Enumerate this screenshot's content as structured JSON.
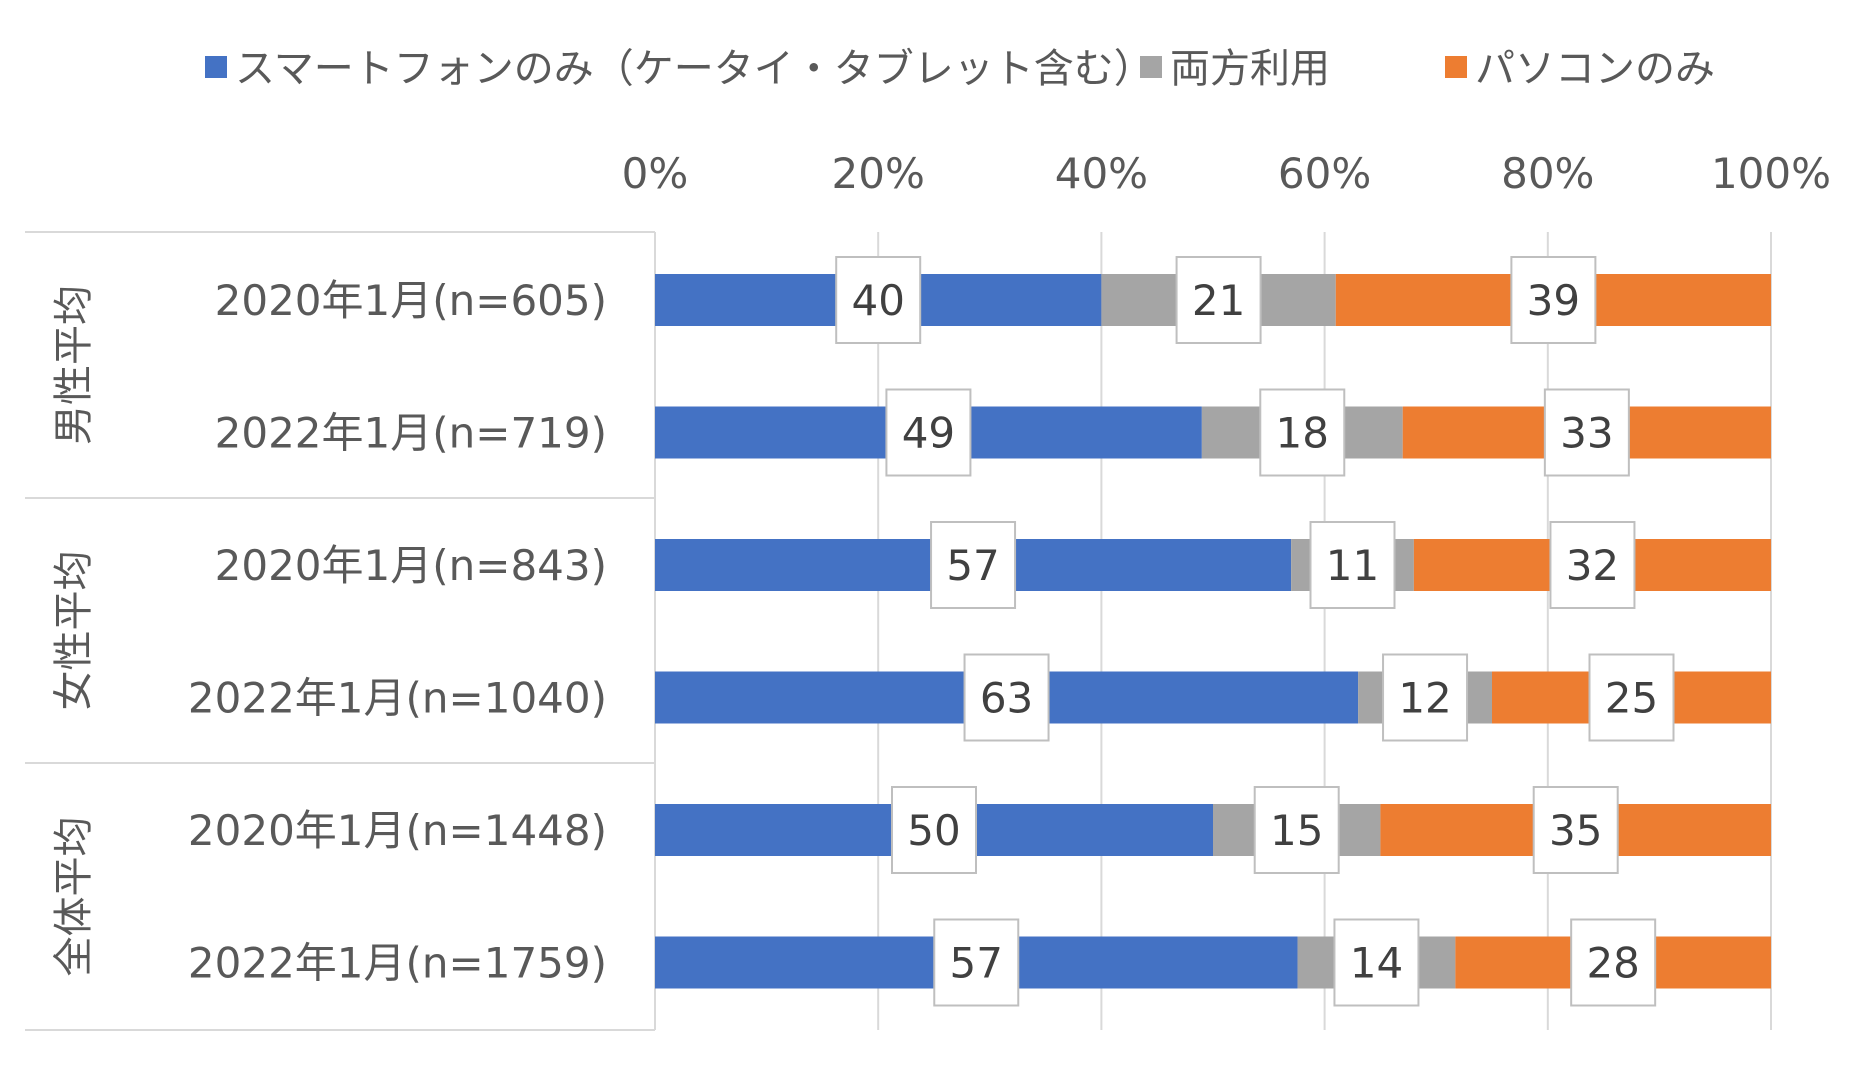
{
  "chart_data": {
    "type": "bar",
    "orientation": "horizontal",
    "stacked": "percent",
    "grid": true,
    "legend_position": "top",
    "xlim": [
      0,
      100
    ],
    "x_ticks": [
      "0%",
      "20%",
      "40%",
      "60%",
      "80%",
      "100%"
    ],
    "groups": [
      {
        "label": "男性平均",
        "categories": [
          "2020年1月(n=605)",
          "2022年1月(n=719)"
        ]
      },
      {
        "label": "女性平均",
        "categories": [
          "2020年1月(n=843)",
          "2022年1月(n=1040)"
        ]
      },
      {
        "label": "全体平均",
        "categories": [
          "2020年1月(n=1448)",
          "2022年1月(n=1759)"
        ]
      }
    ],
    "series": [
      {
        "name": "スマートフォンのみ（ケータイ・タブレット含む）",
        "color": "#4472C4",
        "values": [
          40,
          49,
          57,
          63,
          50,
          57
        ]
      },
      {
        "name": "両方利用",
        "color": "#A5A5A5",
        "values": [
          21,
          18,
          11,
          12,
          15,
          14
        ]
      },
      {
        "name": "パソコンのみ",
        "color": "#ED7D31",
        "values": [
          39,
          33,
          32,
          25,
          35,
          28
        ]
      }
    ]
  }
}
